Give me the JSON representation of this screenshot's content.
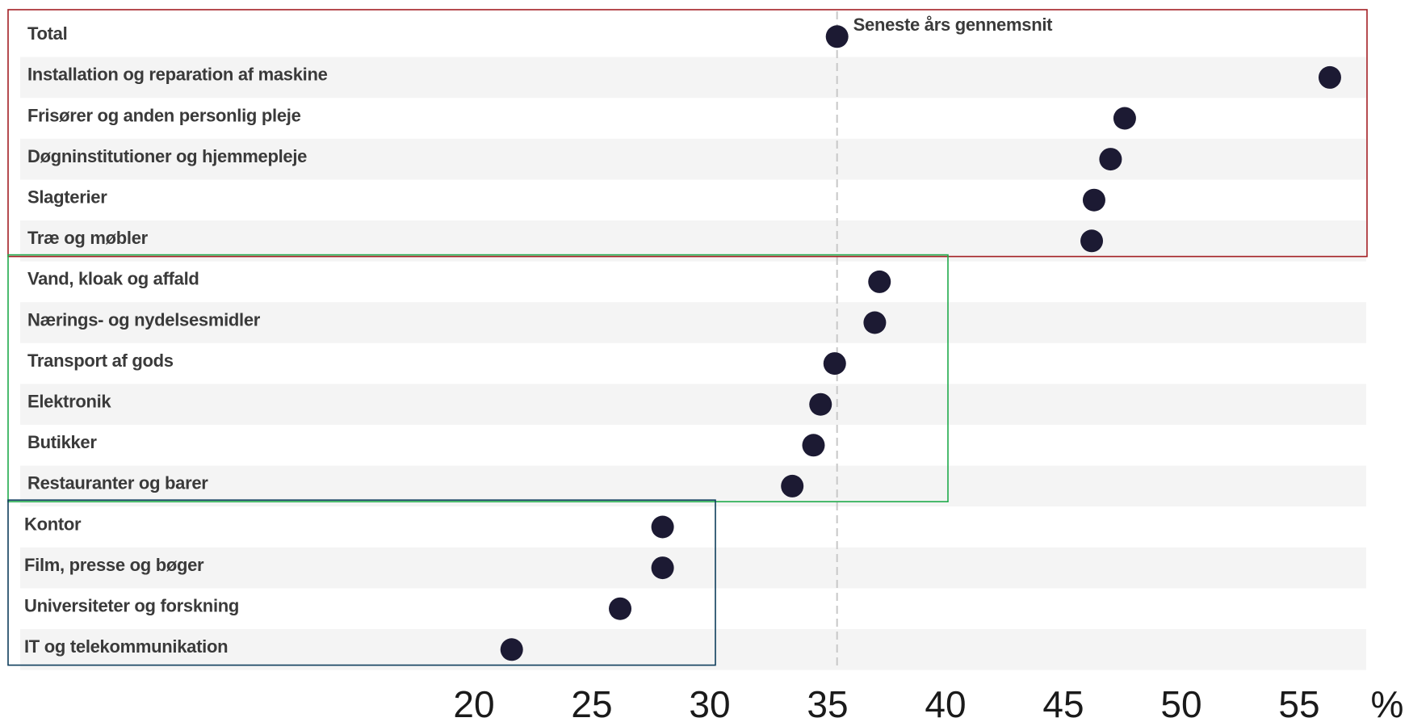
{
  "chart_data": {
    "type": "scatter",
    "categories": [
      "Total",
      "Installation og reparation af maskine",
      "Frisører og anden personlig pleje",
      "Døgninstitutioner og hjemmepleje",
      "Slagterier",
      "Træ og møbler",
      "Vand, kloak og affald",
      "Nærings- og nydelsesmidler",
      "Transport af gods",
      "Elektronik",
      "Butikker",
      "Restauranter og barer",
      "Kontor",
      "Film, presse og bøger",
      "Universiteter og forskning",
      "IT og telekommunikation"
    ],
    "values": [
      35.4,
      56.3,
      47.6,
      47.0,
      46.3,
      46.2,
      37.2,
      37.0,
      35.3,
      34.7,
      34.4,
      33.5,
      28.0,
      28.0,
      26.2,
      21.6
    ],
    "reference_line": {
      "value": 35.4,
      "label": "Seneste års gennemsnit"
    },
    "x_ticks": [
      20,
      25,
      30,
      35,
      40,
      45,
      50,
      55
    ],
    "x_unit": "%",
    "xlim": [
      20,
      56
    ],
    "groups": [
      {
        "from": 0,
        "to": 5,
        "color": "#a31f24"
      },
      {
        "from": 6,
        "to": 11,
        "color": "#1faa4b"
      },
      {
        "from": 12,
        "to": 15,
        "color": "#0e3d5c"
      }
    ],
    "colors": {
      "dot": "#1c1a33",
      "band": "#f4f4f4",
      "ref_line": "#c8c8c8"
    }
  }
}
